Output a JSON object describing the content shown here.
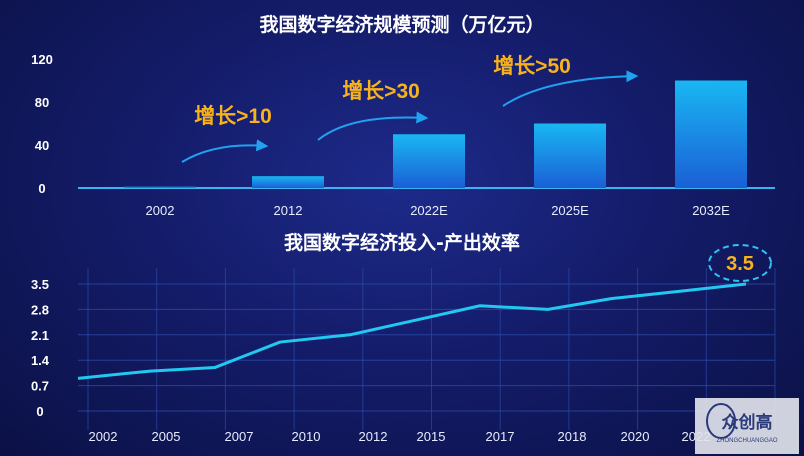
{
  "colors": {
    "accent_bar_top": "#19b7f2",
    "accent_bar_bottom": "#1a5fd6",
    "line": "#22c8f0",
    "growth_text": "#f7b21c",
    "arrow": "#1fa2ef",
    "highlight_value": "#f7b21c"
  },
  "chart_data": [
    {
      "type": "bar",
      "title": "我国数字经济规模预测（万亿元）",
      "categories": [
        "2002",
        "2012",
        "2022E",
        "2025E",
        "2032E"
      ],
      "values": [
        1.2,
        11,
        50,
        60,
        100
      ],
      "yticks": [
        "0",
        "40",
        "80",
        "120"
      ],
      "ylim": [
        0,
        120
      ],
      "annotations": [
        {
          "text": "增长>10"
        },
        {
          "text": "增长>30"
        },
        {
          "text": "增长>50"
        }
      ]
    },
    {
      "type": "line",
      "title": "我国数字经济投入-产出效率",
      "xticks": [
        "2002",
        "2005",
        "2007",
        "2010",
        "2012",
        "2015",
        "2017",
        "2018",
        "2020",
        "2022"
      ],
      "x": [
        2002,
        2005,
        2007,
        2010,
        2012,
        2015,
        2017,
        2018,
        2020,
        2022
      ],
      "values": [
        0.9,
        1.1,
        1.2,
        1.9,
        2.1,
        2.5,
        2.9,
        2.8,
        3.1,
        3.5
      ],
      "yticks": [
        "0",
        "0.7",
        "1.4",
        "2.1",
        "2.8",
        "3.5"
      ],
      "ylim": [
        0,
        3.5
      ],
      "highlight": {
        "text": "3.5"
      }
    }
  ],
  "watermark": {
    "text": "众创高",
    "sub": "ZHONGCHUANGGAO"
  }
}
